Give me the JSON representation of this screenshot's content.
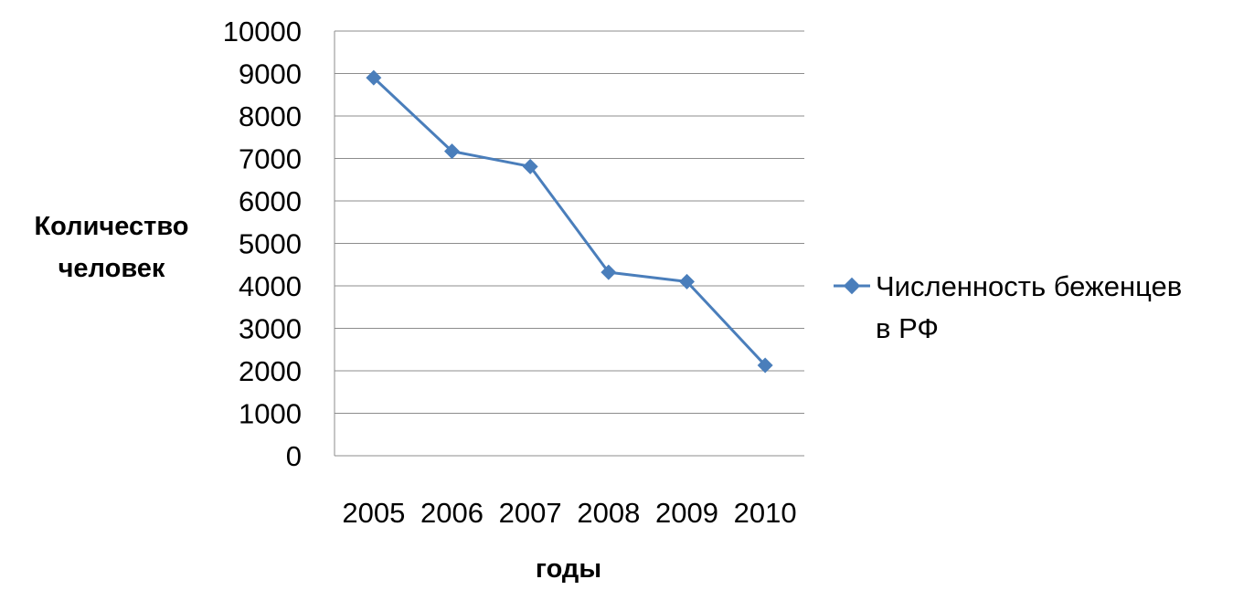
{
  "chart_data": {
    "type": "line",
    "categories": [
      "2005",
      "2006",
      "2007",
      "2008",
      "2009",
      "2010"
    ],
    "series": [
      {
        "name": "Численность беженцев в РФ",
        "name_lines": [
          "Численность беженцев",
          "в РФ"
        ],
        "values": [
          8900,
          7170,
          6810,
          4320,
          4100,
          2130
        ],
        "color": "#4a7ebb"
      }
    ],
    "xlabel": "годы",
    "ylabel_lines": [
      "Количество",
      "человек"
    ],
    "ylim": [
      0,
      10000
    ],
    "yticks": [
      "0",
      "1000",
      "2000",
      "3000",
      "4000",
      "5000",
      "6000",
      "7000",
      "8000",
      "9000",
      "10000"
    ],
    "grid": true,
    "legend_position": "right"
  }
}
